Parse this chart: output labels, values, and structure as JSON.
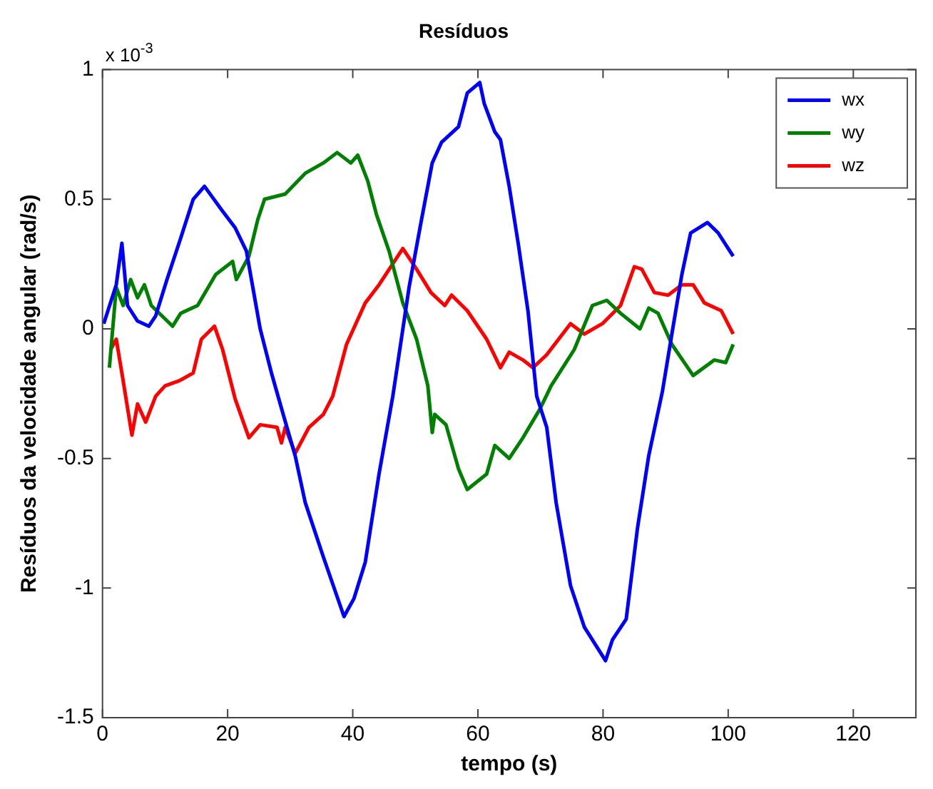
{
  "chart_data": {
    "type": "line",
    "title": "Resíduos",
    "xlabel": "tempo (s)",
    "ylabel": "Resíduos da velocidade angular (rad/s)",
    "annotations": [
      "x 10$^{-3}$"
    ],
    "xlim": [
      0,
      130
    ],
    "xticks": [
      0,
      20,
      40,
      60,
      80,
      100,
      120
    ],
    "ylim": [
      -1.5,
      1
    ],
    "yticks": [
      -1.5,
      -1,
      -0.5,
      0,
      0.5,
      1
    ],
    "grid": false,
    "legend": "top right",
    "marker": "none",
    "line_style": "solid",
    "series": [
      {
        "name": "wx",
        "color": "#0000ff",
        "x": [
          0.2,
          2.2,
          3.1,
          4,
          5.6,
          7.4,
          8.5,
          10.3,
          12.5,
          14.5,
          16.3,
          19,
          21.2,
          23,
          25.2,
          27,
          29,
          30.8,
          32.4,
          35.3,
          38.6,
          40.2,
          42,
          44.2,
          46.4,
          49,
          50.9,
          52.7,
          54.2,
          56.9,
          58.3,
          60.3,
          61,
          62.7,
          63.6,
          65,
          66.5,
          68,
          69.4,
          71,
          72.5,
          74.8,
          77,
          80.4,
          81.5,
          83.7,
          85.5,
          87.3,
          89.5,
          91,
          92.6,
          94,
          96.7,
          98.4,
          100.8
        ],
        "values": [
          0.02,
          0.17,
          0.33,
          0.09,
          0.03,
          0.01,
          0.05,
          0.19,
          0.35,
          0.5,
          0.55,
          0.46,
          0.39,
          0.3,
          0,
          -0.17,
          -0.34,
          -0.49,
          -0.67,
          -0.88,
          -1.11,
          -1.04,
          -0.9,
          -0.56,
          -0.26,
          0.16,
          0.41,
          0.64,
          0.72,
          0.78,
          0.91,
          0.95,
          0.87,
          0.76,
          0.73,
          0.55,
          0.32,
          0.07,
          -0.26,
          -0.38,
          -0.67,
          -0.99,
          -1.15,
          -1.28,
          -1.2,
          -1.12,
          -0.77,
          -0.49,
          -0.24,
          -0.02,
          0.21,
          0.37,
          0.41,
          0.37,
          0.28
        ]
      },
      {
        "name": "wy",
        "color": "#008000",
        "x": [
          1.1,
          2.2,
          3.3,
          4.5,
          5.6,
          6.7,
          7.8,
          11.2,
          12.5,
          15.2,
          18.1,
          20.8,
          21.4,
          23.4,
          24.8,
          25.9,
          29.2,
          32.4,
          35.3,
          37.5,
          39.7,
          40.8,
          42.4,
          43.8,
          45.8,
          48,
          50.2,
          52,
          52.7,
          53.1,
          54.9,
          56.9,
          58.3,
          61.4,
          62.7,
          65,
          67.2,
          69.9,
          71.7,
          75.4,
          78.3,
          80.6,
          82.8,
          85.9,
          87.3,
          88.8,
          91,
          94.4,
          97.8,
          99.6,
          100.8
        ],
        "values": [
          -0.15,
          0.16,
          0.09,
          0.19,
          0.12,
          0.17,
          0.09,
          0.01,
          0.06,
          0.09,
          0.21,
          0.26,
          0.19,
          0.28,
          0.42,
          0.5,
          0.52,
          0.6,
          0.64,
          0.68,
          0.64,
          0.67,
          0.57,
          0.44,
          0.3,
          0.1,
          -0.04,
          -0.22,
          -0.4,
          -0.33,
          -0.37,
          -0.54,
          -0.62,
          -0.56,
          -0.45,
          -0.5,
          -0.42,
          -0.31,
          -0.22,
          -0.08,
          0.09,
          0.11,
          0.06,
          0,
          0.08,
          0.06,
          -0.06,
          -0.18,
          -0.12,
          -0.13,
          -0.06
        ]
      },
      {
        "name": "wz",
        "color": "#ff0000",
        "x": [
          1.3,
          2.2,
          3.3,
          4.7,
          5.6,
          6.9,
          8.5,
          10,
          12.3,
          14.5,
          15.8,
          17.9,
          19.2,
          21.2,
          23.4,
          25.2,
          27.9,
          28.6,
          29.2,
          30.8,
          33,
          35.3,
          36.8,
          39,
          42,
          44.2,
          48,
          50.2,
          52.5,
          54.7,
          55.8,
          58.3,
          61.4,
          63.6,
          65,
          67.2,
          68.8,
          71,
          74.8,
          77,
          79.9,
          82.8,
          85,
          86.2,
          88.2,
          90.4,
          92.6,
          94.4,
          96.2,
          98.9,
          100.8
        ],
        "values": [
          -0.08,
          -0.04,
          -0.2,
          -0.41,
          -0.29,
          -0.36,
          -0.26,
          -0.22,
          -0.2,
          -0.17,
          -0.04,
          0.01,
          -0.08,
          -0.27,
          -0.42,
          -0.37,
          -0.38,
          -0.44,
          -0.38,
          -0.48,
          -0.38,
          -0.33,
          -0.26,
          -0.06,
          0.1,
          0.17,
          0.31,
          0.23,
          0.14,
          0.09,
          0.13,
          0.07,
          -0.04,
          -0.15,
          -0.09,
          -0.12,
          -0.15,
          -0.1,
          0.02,
          -0.02,
          0.02,
          0.09,
          0.24,
          0.23,
          0.14,
          0.13,
          0.17,
          0.17,
          0.1,
          0.07,
          -0.02
        ]
      }
    ]
  }
}
